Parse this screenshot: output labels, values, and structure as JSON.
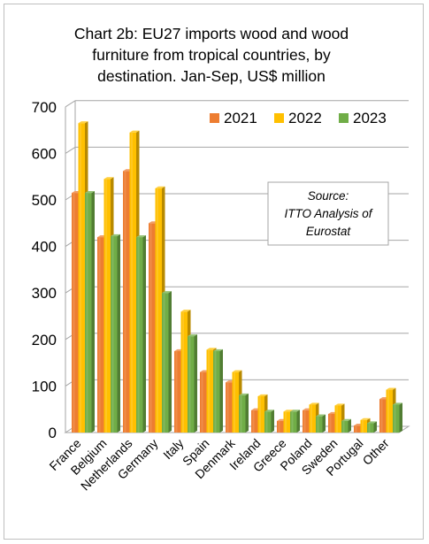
{
  "chart_data": {
    "type": "bar",
    "title": "Chart 2b: EU27 imports wood and wood furniture from tropical countries, by destination. Jan-Sep, US$ million",
    "title_lines": [
      "Chart 2b: EU27 imports wood and wood",
      "furniture from tropical countries, by",
      "destination. Jan-Sep, US$ million"
    ],
    "categories": [
      "France",
      "Belgium",
      "Netherlands",
      "Germany",
      "Italy",
      "Spain",
      "Denmark",
      "Ireland",
      "Greece",
      "Poland",
      "Sweden",
      "Portugal",
      "Other"
    ],
    "series": [
      {
        "name": "2021",
        "color": "#ED7D31",
        "values": [
          515,
          420,
          562,
          450,
          175,
          130,
          108,
          48,
          25,
          48,
          40,
          15,
          72
        ]
      },
      {
        "name": "2022",
        "color": "#FFC000",
        "values": [
          665,
          545,
          645,
          525,
          260,
          178,
          130,
          78,
          45,
          60,
          58,
          27,
          92
        ]
      },
      {
        "name": "2023",
        "color": "#70AD47",
        "values": [
          515,
          422,
          420,
          300,
          207,
          175,
          80,
          45,
          45,
          35,
          25,
          20,
          60
        ]
      }
    ],
    "ylim": [
      0,
      700
    ],
    "yticks": [
      0,
      100,
      200,
      300,
      400,
      500,
      600,
      700
    ],
    "legend_position": "top-right",
    "grid": true,
    "annotation": {
      "lines": [
        "Source:",
        "ITTO Analysis of",
        "Eurostat"
      ]
    }
  }
}
